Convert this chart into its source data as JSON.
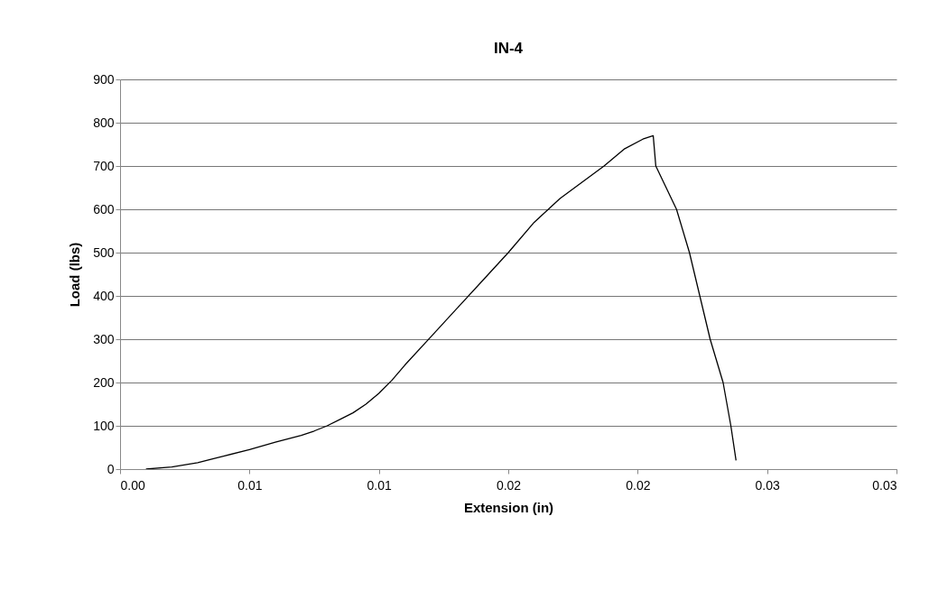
{
  "chart_data": {
    "type": "line",
    "title": "IN-4",
    "xlabel": "Extension (in)",
    "ylabel": "Load (lbs)",
    "xlim": [
      0,
      0.03
    ],
    "ylim": [
      0,
      900
    ],
    "xticks": [
      {
        "value": 0,
        "label": "0.00"
      },
      {
        "value": 0.005,
        "label": "0.01"
      },
      {
        "value": 0.01,
        "label": "0.01"
      },
      {
        "value": 0.015,
        "label": "0.02"
      },
      {
        "value": 0.02,
        "label": "0.02"
      },
      {
        "value": 0.025,
        "label": "0.03"
      },
      {
        "value": 0.03,
        "label": "0.03"
      }
    ],
    "yticks": [
      0,
      100,
      200,
      300,
      400,
      500,
      600,
      700,
      800,
      900
    ],
    "grid": "y",
    "marker": "none",
    "line_style": "solid",
    "series": [
      {
        "color": "#000000",
        "x": [
          0.001,
          0.002,
          0.003,
          0.004,
          0.005,
          0.006,
          0.007,
          0.0075,
          0.008,
          0.0085,
          0.009,
          0.0095,
          0.01,
          0.0105,
          0.011,
          0.012,
          0.013,
          0.014,
          0.015,
          0.016,
          0.017,
          0.0187,
          0.0195,
          0.0202,
          0.0206,
          0.0207,
          0.0215,
          0.022,
          0.0224,
          0.0228,
          0.0233,
          0.0236,
          0.0238
        ],
        "values": [
          0,
          5,
          15,
          30,
          45,
          62,
          78,
          88,
          100,
          115,
          130,
          150,
          175,
          205,
          240,
          305,
          370,
          435,
          500,
          570,
          625,
          700,
          740,
          762,
          770,
          700,
          600,
          500,
          400,
          300,
          200,
          100,
          20
        ]
      }
    ]
  }
}
